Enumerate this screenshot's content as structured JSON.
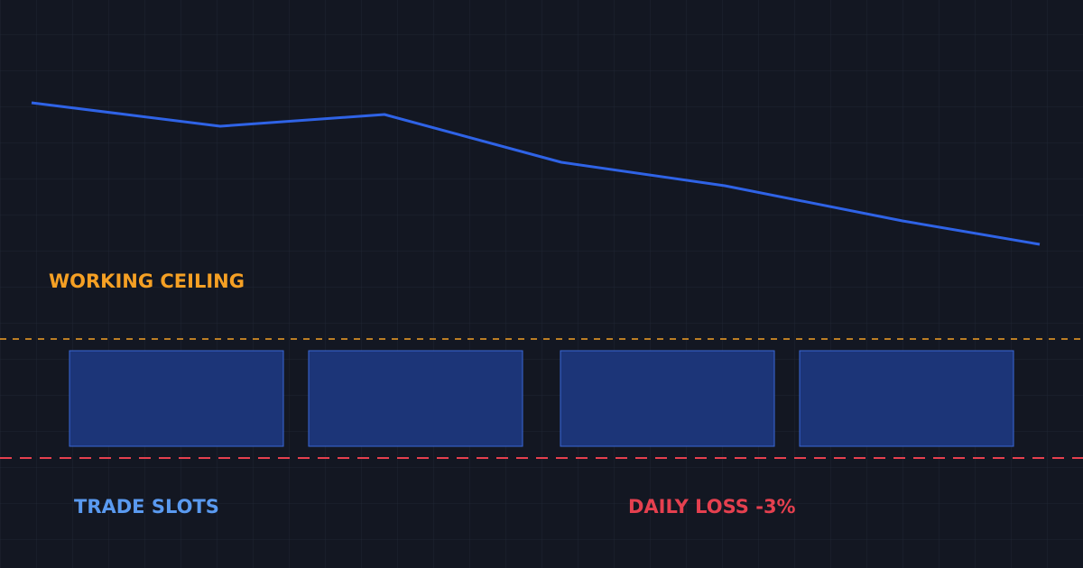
{
  "labels": {
    "working_ceiling": "WORKING CEILING",
    "trade_slots": "TRADE SLOTS",
    "daily_loss": "DAILY LOSS -3%"
  }
}
